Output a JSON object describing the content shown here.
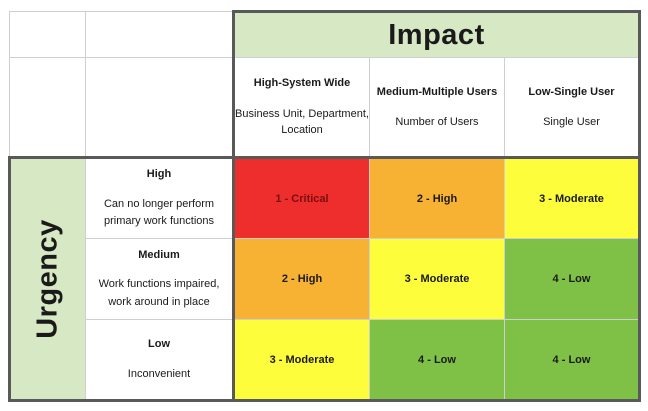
{
  "impact": {
    "title": "Impact",
    "columns": [
      {
        "label": "High-System Wide",
        "sub": "Business Unit, Department, Location"
      },
      {
        "label": "Medium-Multiple Users",
        "sub": "Number of Users"
      },
      {
        "label": "Low-Single User",
        "sub": "Single User"
      }
    ]
  },
  "urgency": {
    "title": "Urgency",
    "rows": [
      {
        "label": "High",
        "sub": "Can no longer perform primary work functions"
      },
      {
        "label": "Medium",
        "sub": "Work functions impaired, work around in place"
      },
      {
        "label": "Low",
        "sub": "Inconvenient"
      }
    ]
  },
  "matrix": [
    [
      {
        "text": "1 - Critical",
        "color": "#ee2d2d"
      },
      {
        "text": "2 - High",
        "color": "#f8b233"
      },
      {
        "text": "3 - Moderate",
        "color": "#fdfd3c"
      }
    ],
    [
      {
        "text": "2 - High",
        "color": "#f8b233"
      },
      {
        "text": "3 - Moderate",
        "color": "#fdfd3c"
      },
      {
        "text": "4 - Low",
        "color": "#7fc046"
      }
    ],
    [
      {
        "text": "3 - Moderate",
        "color": "#fdfd3c"
      },
      {
        "text": "4 - Low",
        "color": "#7fc046"
      },
      {
        "text": "4 - Low",
        "color": "#7fc046"
      }
    ]
  ]
}
